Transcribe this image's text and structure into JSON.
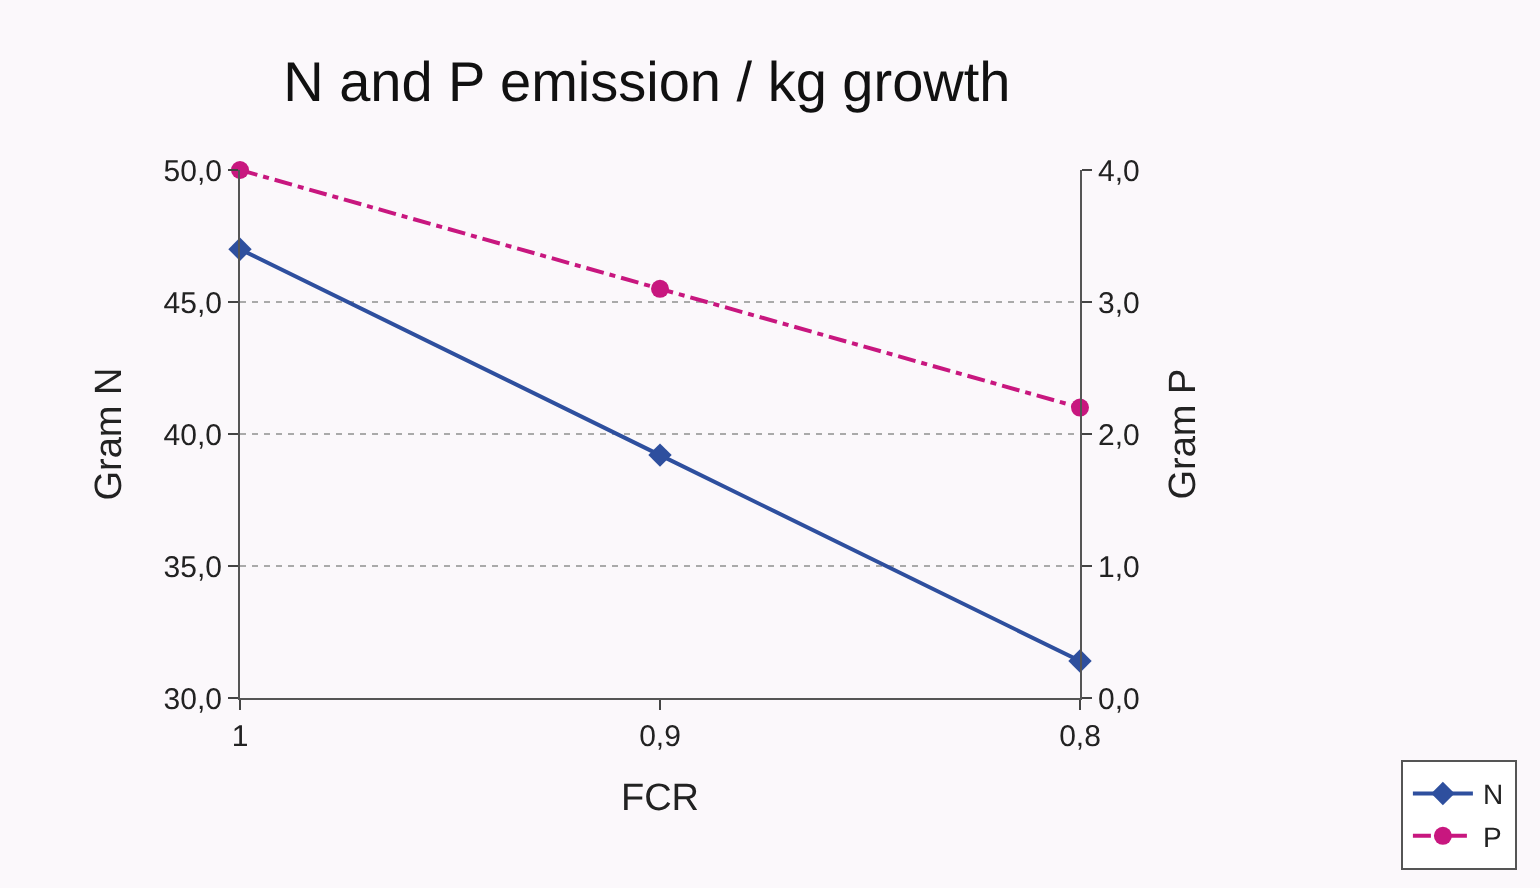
{
  "chart_data": {
    "type": "line",
    "title": "N and P emission / kg growth",
    "xlabel": "FCR",
    "ylabel": "Gram N",
    "y2label": "Gram P",
    "categories": [
      "1",
      "0,9",
      "0,8"
    ],
    "series": [
      {
        "name": "N",
        "color": "#2e4f9e",
        "values": [
          47.0,
          39.2,
          31.4
        ],
        "marker": "diamond",
        "line_style": "solid"
      },
      {
        "name": "P",
        "color": "#c8177f",
        "values": [
          4.0,
          3.1,
          2.2
        ],
        "axis": "y2",
        "marker": "circle",
        "line_style": "dashed"
      }
    ],
    "ylim": [
      30,
      50
    ],
    "yticks": [
      {
        "value": 30,
        "label": "30,0"
      },
      {
        "value": 35,
        "label": "35,0"
      },
      {
        "value": 40,
        "label": "40,0"
      },
      {
        "value": 45,
        "label": "45,0"
      },
      {
        "value": 50,
        "label": "50,0"
      }
    ],
    "y2lim": [
      0,
      4
    ],
    "y2ticks": [
      {
        "value": 0,
        "label": "0,0"
      },
      {
        "value": 1,
        "label": "1,0"
      },
      {
        "value": 2,
        "label": "2,0"
      },
      {
        "value": 3,
        "label": "3,0"
      },
      {
        "value": 4,
        "label": "4,0"
      }
    ],
    "grid": "y",
    "legend": "bottom right"
  }
}
